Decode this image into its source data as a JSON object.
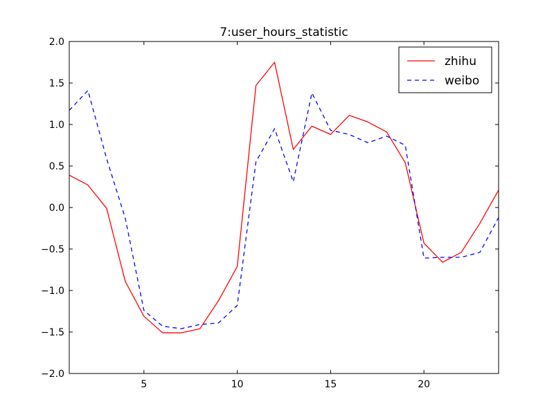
{
  "chart_data": {
    "type": "line",
    "title": "7:user_hours_statistic",
    "xlabel": "",
    "ylabel": "",
    "xlim": [
      1,
      24
    ],
    "ylim": [
      -2.0,
      2.0
    ],
    "xticks": [
      5,
      10,
      15,
      20
    ],
    "xtick_labels": [
      "5",
      "10",
      "15",
      "20"
    ],
    "yticks": [
      -2.0,
      -1.5,
      -1.0,
      -0.5,
      0.0,
      0.5,
      1.0,
      1.5,
      2.0
    ],
    "ytick_labels": [
      "−2.0",
      "−1.5",
      "−1.0",
      "−0.5",
      "0.0",
      "0.5",
      "1.0",
      "1.5",
      "2.0"
    ],
    "grid": false,
    "legend_position": "top-right",
    "x": [
      1,
      2,
      3,
      4,
      5,
      6,
      7,
      8,
      9,
      10,
      11,
      12,
      13,
      14,
      15,
      16,
      17,
      18,
      19,
      20,
      21,
      22,
      23,
      24
    ],
    "series": [
      {
        "name": "zhihu",
        "color": "#ff0000",
        "style": "solid",
        "values": [
          0.39,
          0.27,
          -0.01,
          -0.89,
          -1.31,
          -1.51,
          -1.51,
          -1.46,
          -1.12,
          -0.71,
          1.47,
          1.75,
          0.7,
          0.98,
          0.88,
          1.11,
          1.03,
          0.91,
          0.54,
          -0.43,
          -0.66,
          -0.54,
          -0.19,
          0.21
        ]
      },
      {
        "name": "weibo",
        "color": "#0000ff",
        "style": "dashed",
        "values": [
          1.17,
          1.41,
          0.59,
          -0.13,
          -1.24,
          -1.43,
          -1.46,
          -1.41,
          -1.39,
          -1.18,
          0.55,
          0.95,
          0.31,
          1.38,
          0.93,
          0.88,
          0.78,
          0.86,
          0.75,
          -0.61,
          -0.6,
          -0.6,
          -0.54,
          -0.12
        ]
      }
    ]
  }
}
